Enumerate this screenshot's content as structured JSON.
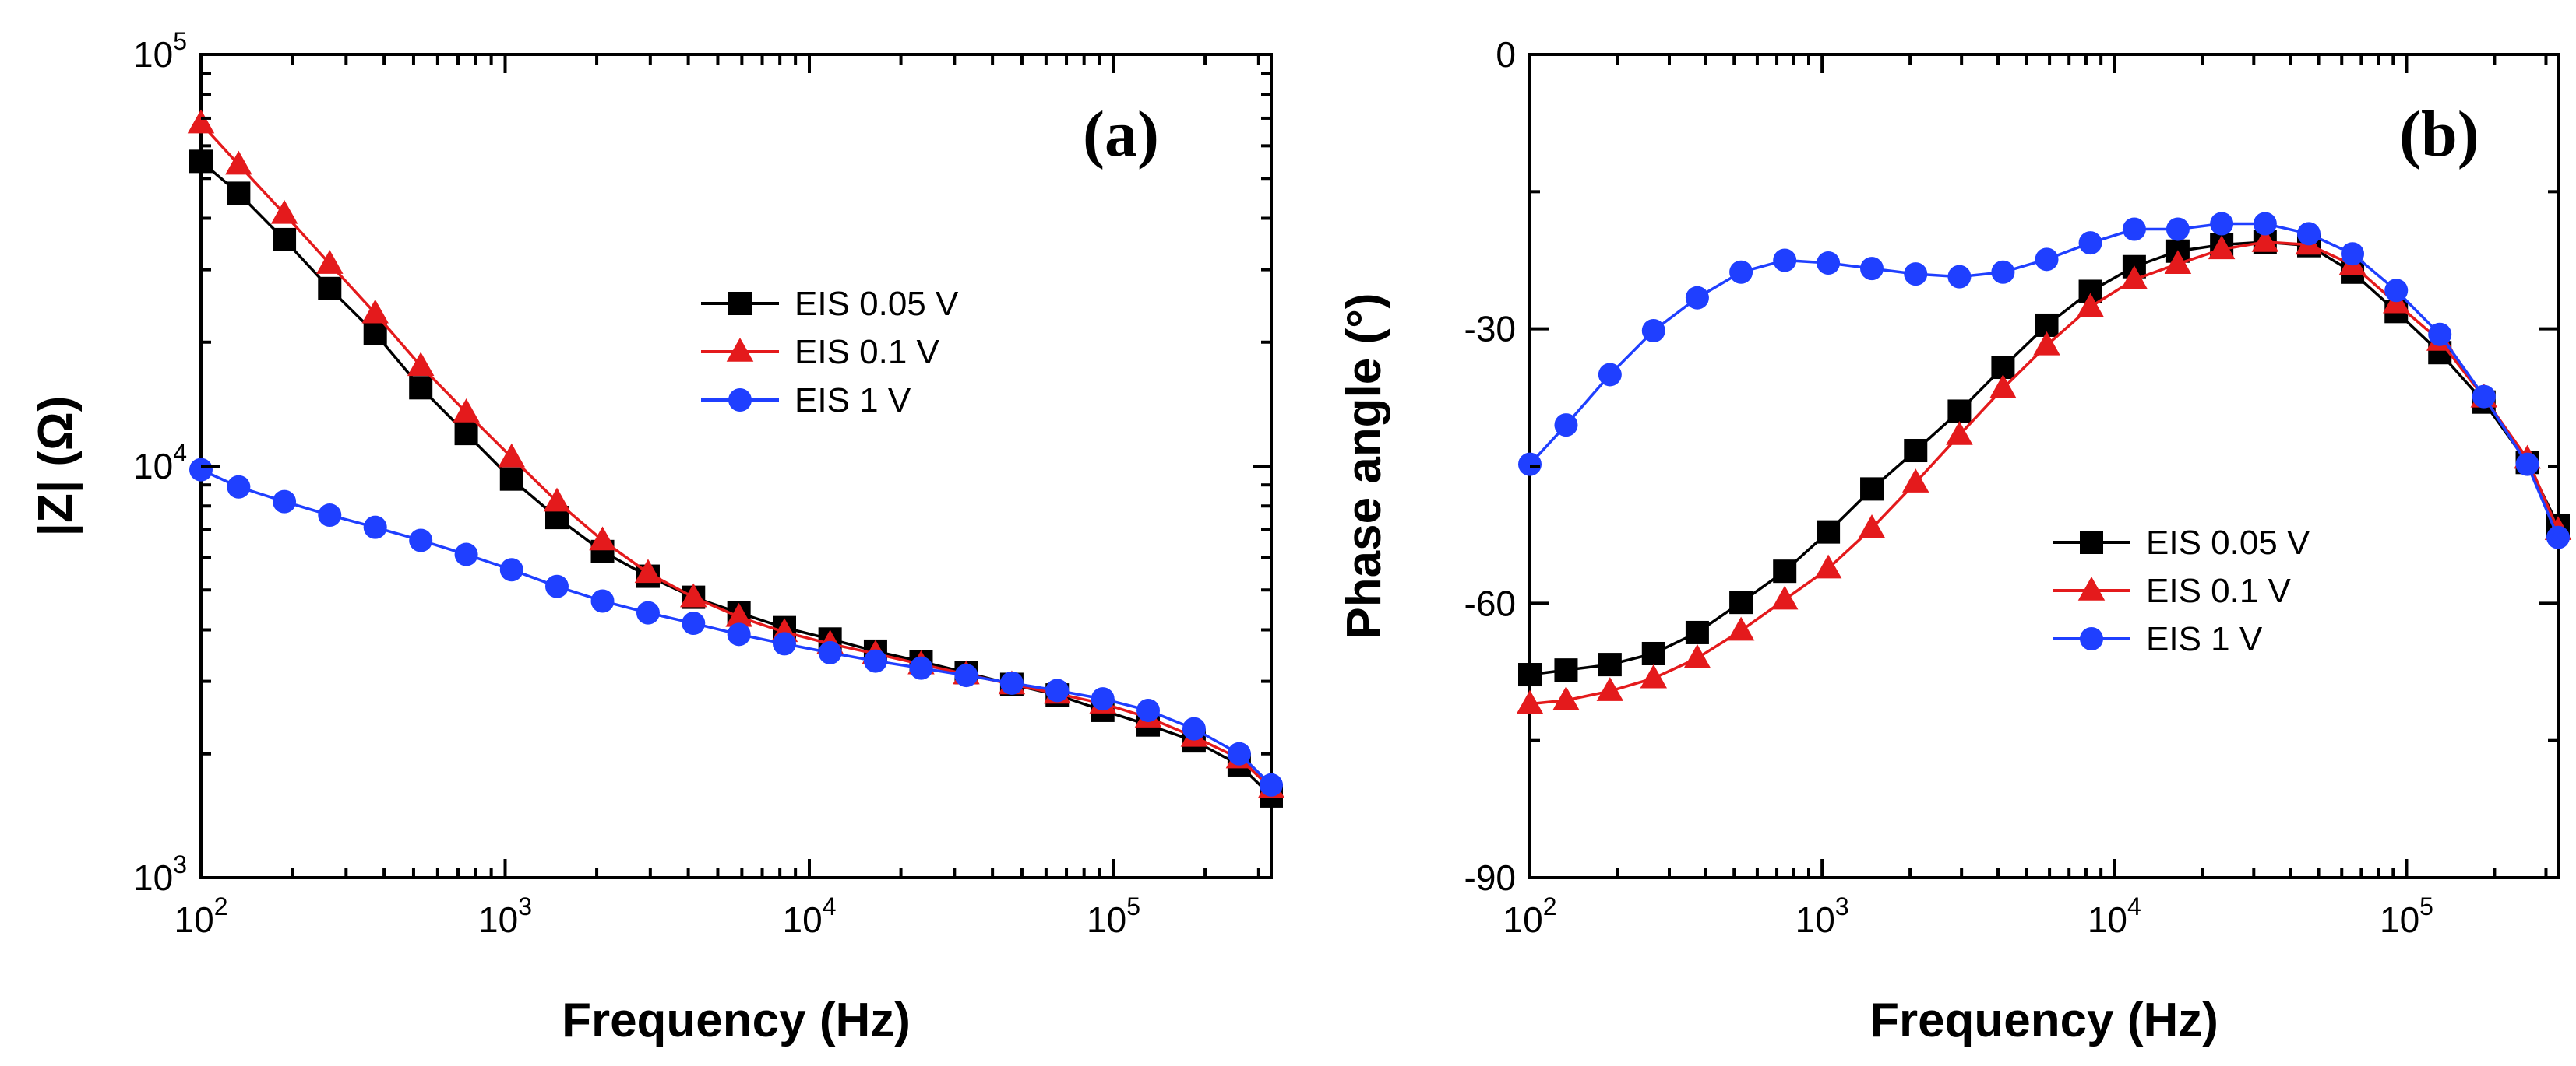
{
  "figure": {
    "caption": ""
  },
  "chart_data": [
    {
      "type": "line",
      "panel_label": "(a)",
      "xlabel": "Frequency (Hz)",
      "ylabel": "|Z| (Ω)",
      "xscale": "log",
      "yscale": "log",
      "xlim": [
        100,
        330000
      ],
      "ylim": [
        1000,
        100000
      ],
      "xticks": [
        {
          "base": "10",
          "exp": "2"
        },
        {
          "base": "10",
          "exp": "3"
        },
        {
          "base": "10",
          "exp": "4"
        },
        {
          "base": "10",
          "exp": "5"
        }
      ],
      "yticks": [
        {
          "base": "10",
          "exp": "3"
        },
        {
          "base": "10",
          "exp": "4"
        },
        {
          "base": "10",
          "exp": "5"
        }
      ],
      "legend_position": "center-right",
      "series": [
        {
          "name": "EIS 0.05 V",
          "color": "#000000",
          "marker": "square",
          "x": [
            100,
            133,
            188,
            265,
            374,
            528,
            745,
            1050,
            1480,
            2090,
            2950,
            4160,
            5870,
            8280,
            11700,
            16500,
            23300,
            32800,
            46300,
            65300,
            92200,
            130000,
            184000,
            259000,
            330000
          ],
          "values": [
            55000,
            46000,
            35500,
            27000,
            21000,
            15500,
            12000,
            9300,
            7500,
            6200,
            5400,
            4800,
            4400,
            4050,
            3800,
            3550,
            3350,
            3150,
            2950,
            2780,
            2550,
            2350,
            2150,
            1880,
            1580
          ]
        },
        {
          "name": "EIS 0.1 V",
          "color": "#e41a1c",
          "marker": "triangle",
          "x": [
            100,
            133,
            188,
            265,
            374,
            528,
            745,
            1050,
            1480,
            2090,
            2950,
            4160,
            5870,
            8280,
            11700,
            16500,
            23300,
            32800,
            46300,
            65300,
            92200,
            130000,
            184000,
            259000,
            330000
          ],
          "values": [
            68000,
            54000,
            41000,
            31000,
            23500,
            17500,
            13500,
            10500,
            8200,
            6600,
            5500,
            4800,
            4300,
            3950,
            3700,
            3500,
            3300,
            3120,
            2950,
            2800,
            2650,
            2450,
            2200,
            1950,
            1650
          ]
        },
        {
          "name": "EIS 1 V",
          "color": "#1f3fff",
          "marker": "circle",
          "x": [
            100,
            133,
            188,
            265,
            374,
            528,
            745,
            1050,
            1480,
            2090,
            2950,
            4160,
            5870,
            8280,
            11700,
            16500,
            23300,
            32800,
            46300,
            65300,
            92200,
            130000,
            184000,
            259000,
            330000
          ],
          "values": [
            9800,
            8900,
            8200,
            7600,
            7100,
            6600,
            6100,
            5600,
            5100,
            4700,
            4400,
            4150,
            3900,
            3700,
            3520,
            3360,
            3230,
            3100,
            2970,
            2850,
            2720,
            2550,
            2300,
            2000,
            1680
          ]
        }
      ]
    },
    {
      "type": "line",
      "panel_label": "(b)",
      "xlabel": "Frequency (Hz)",
      "ylabel": "Phase angle (°)",
      "xscale": "log",
      "yscale": "linear",
      "xlim": [
        100,
        330000
      ],
      "ylim": [
        -90,
        0
      ],
      "xticks": [
        {
          "base": "10",
          "exp": "2"
        },
        {
          "base": "10",
          "exp": "3"
        },
        {
          "base": "10",
          "exp": "4"
        },
        {
          "base": "10",
          "exp": "5"
        }
      ],
      "yticks": [
        "0",
        "-30",
        "-60",
        "-90"
      ],
      "legend_position": "center-right",
      "series": [
        {
          "name": "EIS 0.05 V",
          "color": "#000000",
          "marker": "square",
          "x": [
            100,
            133,
            188,
            265,
            374,
            528,
            745,
            1050,
            1480,
            2090,
            2950,
            4160,
            5870,
            8280,
            11700,
            16500,
            23300,
            32800,
            46300,
            65300,
            92200,
            130000,
            184000,
            259000,
            330000
          ],
          "values": [
            -67.8,
            -67.3,
            -66.7,
            -65.5,
            -63.2,
            -59.9,
            -56.5,
            -52.2,
            -47.5,
            -43.3,
            -39.0,
            -34.2,
            -29.6,
            -25.9,
            -23.2,
            -21.5,
            -20.8,
            -20.5,
            -20.9,
            -23.8,
            -28.1,
            -32.6,
            -38.0,
            -44.6,
            -51.5
          ]
        },
        {
          "name": "EIS 0.1 V",
          "color": "#e41a1c",
          "marker": "triangle",
          "x": [
            100,
            133,
            188,
            265,
            374,
            528,
            745,
            1050,
            1480,
            2090,
            2950,
            4160,
            5870,
            8280,
            11700,
            16500,
            23300,
            32800,
            46300,
            65300,
            92200,
            130000,
            184000,
            259000,
            330000
          ],
          "values": [
            -71.0,
            -70.6,
            -69.6,
            -68.2,
            -66.0,
            -63.0,
            -59.6,
            -56.2,
            -51.8,
            -46.8,
            -41.6,
            -36.5,
            -31.8,
            -27.6,
            -24.6,
            -22.9,
            -21.3,
            -20.5,
            -20.8,
            -23.0,
            -27.2,
            -31.3,
            -37.5,
            -44.2,
            -52.0
          ]
        },
        {
          "name": "EIS 1 V",
          "color": "#1f3fff",
          "marker": "circle",
          "x": [
            100,
            133,
            188,
            265,
            374,
            528,
            745,
            1050,
            1480,
            2090,
            2950,
            4160,
            5870,
            8280,
            11700,
            16500,
            23300,
            32800,
            46300,
            65300,
            92200,
            130000,
            184000,
            259000,
            330000
          ],
          "values": [
            -44.8,
            -40.5,
            -35.0,
            -30.2,
            -26.6,
            -23.8,
            -22.5,
            -22.8,
            -23.4,
            -24.0,
            -24.3,
            -23.8,
            -22.4,
            -20.6,
            -19.1,
            -19.1,
            -18.5,
            -18.5,
            -19.6,
            -21.8,
            -25.8,
            -30.6,
            -37.4,
            -44.8,
            -52.8
          ]
        }
      ]
    }
  ]
}
